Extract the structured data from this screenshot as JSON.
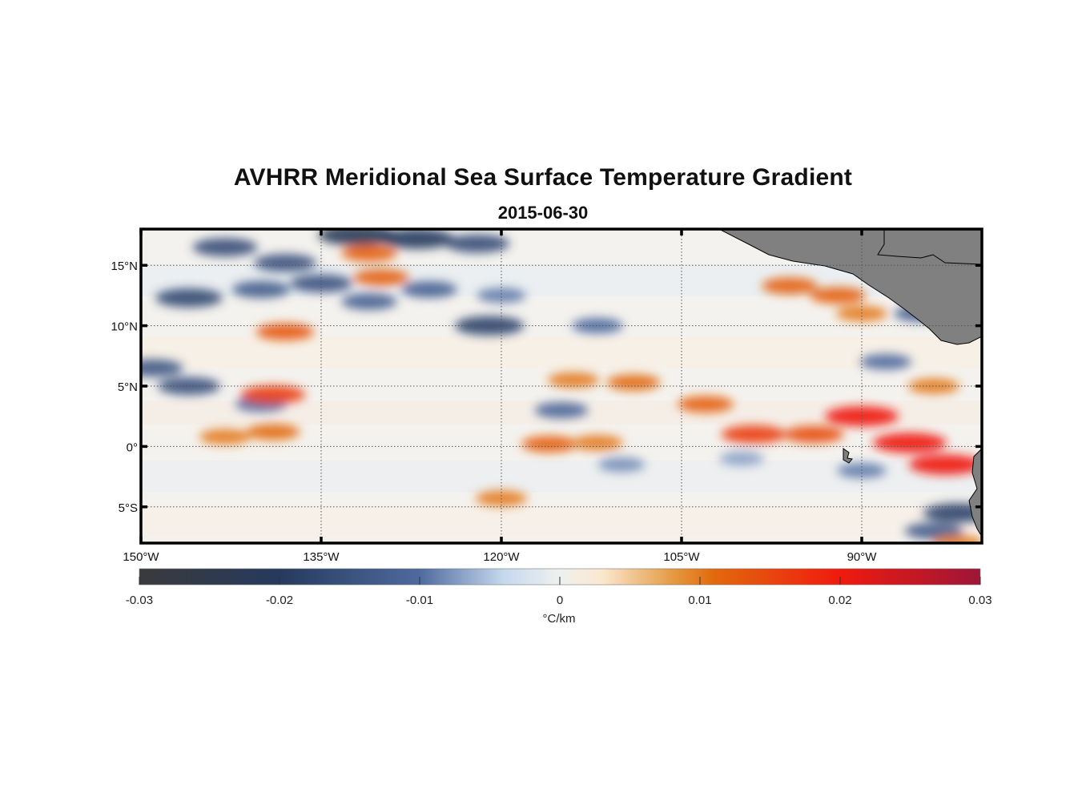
{
  "title": "AVHRR Meridional Sea Surface Temperature Gradient",
  "date": "2015-06-30",
  "map": {
    "lon_range": [
      -150,
      -80
    ],
    "lat_range": [
      -8,
      18
    ],
    "lon_ticks": [
      {
        "lon": -150,
        "label": "150°W"
      },
      {
        "lon": -135,
        "label": "135°W"
      },
      {
        "lon": -120,
        "label": "120°W"
      },
      {
        "lon": -105,
        "label": "105°W"
      },
      {
        "lon": -90,
        "label": "90°W"
      }
    ],
    "lat_ticks": [
      {
        "lat": 15,
        "label": "15°N"
      },
      {
        "lat": 10,
        "label": "10°N"
      },
      {
        "lat": 5,
        "label": "5°N"
      },
      {
        "lat": 0,
        "label": "0°"
      },
      {
        "lat": -5,
        "label": "5°S"
      }
    ],
    "land_color": "#808080",
    "frame_color": "#000000"
  },
  "colorbar": {
    "range": [
      -0.03,
      0.03
    ],
    "ticks": [
      {
        "value": -0.03,
        "label": "-0.03"
      },
      {
        "value": -0.02,
        "label": "-0.02"
      },
      {
        "value": -0.01,
        "label": "-0.01"
      },
      {
        "value": 0,
        "label": "0"
      },
      {
        "value": 0.01,
        "label": "0.01"
      },
      {
        "value": 0.02,
        "label": "0.02"
      },
      {
        "value": 0.03,
        "label": "0.03"
      }
    ],
    "units": "°C/km",
    "stops": [
      {
        "value": -0.03,
        "color": "#3a3a3c"
      },
      {
        "value": -0.02,
        "color": "#263a5e"
      },
      {
        "value": -0.01,
        "color": "#4f6a9e"
      },
      {
        "value": -0.004,
        "color": "#c6d8ee"
      },
      {
        "value": 0,
        "color": "#eef1ef"
      },
      {
        "value": 0.003,
        "color": "#fbe7cf"
      },
      {
        "value": 0.008,
        "color": "#e59b44"
      },
      {
        "value": 0.011,
        "color": "#e2690d"
      },
      {
        "value": 0.02,
        "color": "#f01a0e"
      },
      {
        "value": 0.03,
        "color": "#9d1638"
      }
    ]
  },
  "features": [
    {
      "lon": -143,
      "lat": 16.5,
      "value": -0.016
    },
    {
      "lon": -138,
      "lat": 15.2,
      "value": -0.015
    },
    {
      "lon": -132,
      "lat": 17.5,
      "value": -0.022
    },
    {
      "lon": -127,
      "lat": 17.2,
      "value": -0.02
    },
    {
      "lon": -122,
      "lat": 16.8,
      "value": -0.016
    },
    {
      "lon": -146,
      "lat": 12.3,
      "value": -0.017
    },
    {
      "lon": -140,
      "lat": 13.0,
      "value": -0.013
    },
    {
      "lon": -135,
      "lat": 13.5,
      "value": -0.015
    },
    {
      "lon": -131,
      "lat": 12.0,
      "value": -0.012
    },
    {
      "lon": -126,
      "lat": 13.0,
      "value": -0.012
    },
    {
      "lon": -120,
      "lat": 12.5,
      "value": -0.009
    },
    {
      "lon": -149,
      "lat": 6.5,
      "value": -0.014
    },
    {
      "lon": -146,
      "lat": 5.0,
      "value": -0.015
    },
    {
      "lon": -140,
      "lat": 3.5,
      "value": -0.01
    },
    {
      "lon": -115,
      "lat": 3.0,
      "value": -0.011
    },
    {
      "lon": -121,
      "lat": 10.0,
      "value": -0.018
    },
    {
      "lon": -112,
      "lat": 10.0,
      "value": -0.01
    },
    {
      "lon": -85,
      "lat": 11.0,
      "value": -0.012
    },
    {
      "lon": -88,
      "lat": 7.0,
      "value": -0.01
    },
    {
      "lon": -82,
      "lat": -5.5,
      "value": -0.018
    },
    {
      "lon": -84,
      "lat": -7.0,
      "value": -0.013
    },
    {
      "lon": -110,
      "lat": -1.5,
      "value": -0.008
    },
    {
      "lon": -100,
      "lat": -1.0,
      "value": -0.007
    },
    {
      "lon": -90,
      "lat": -2.0,
      "value": -0.009
    },
    {
      "lon": -131,
      "lat": 16.0,
      "value": 0.012
    },
    {
      "lon": -130,
      "lat": 14.0,
      "value": 0.012
    },
    {
      "lon": -138,
      "lat": 9.5,
      "value": 0.013
    },
    {
      "lon": -139,
      "lat": 4.3,
      "value": 0.016
    },
    {
      "lon": -139,
      "lat": 1.2,
      "value": 0.011
    },
    {
      "lon": -143,
      "lat": 0.8,
      "value": 0.01
    },
    {
      "lon": -116,
      "lat": 0.2,
      "value": 0.012
    },
    {
      "lon": -112,
      "lat": 0.3,
      "value": 0.01
    },
    {
      "lon": -109,
      "lat": 5.3,
      "value": 0.011
    },
    {
      "lon": -114,
      "lat": 5.5,
      "value": 0.01
    },
    {
      "lon": -103,
      "lat": 3.5,
      "value": 0.012
    },
    {
      "lon": -99,
      "lat": 1.0,
      "value": 0.016
    },
    {
      "lon": -94,
      "lat": 1.0,
      "value": 0.014
    },
    {
      "lon": -90,
      "lat": 2.5,
      "value": 0.02
    },
    {
      "lon": -86,
      "lat": 0.3,
      "value": 0.02
    },
    {
      "lon": -83,
      "lat": -1.5,
      "value": 0.02
    },
    {
      "lon": -96,
      "lat": 13.3,
      "value": 0.012
    },
    {
      "lon": -92,
      "lat": 12.5,
      "value": 0.012
    },
    {
      "lon": -90,
      "lat": 11.0,
      "value": 0.01
    },
    {
      "lon": -84,
      "lat": 5.0,
      "value": 0.01
    },
    {
      "lon": -120,
      "lat": -4.3,
      "value": 0.01
    },
    {
      "lon": -82,
      "lat": -8.0,
      "value": 0.01
    }
  ]
}
